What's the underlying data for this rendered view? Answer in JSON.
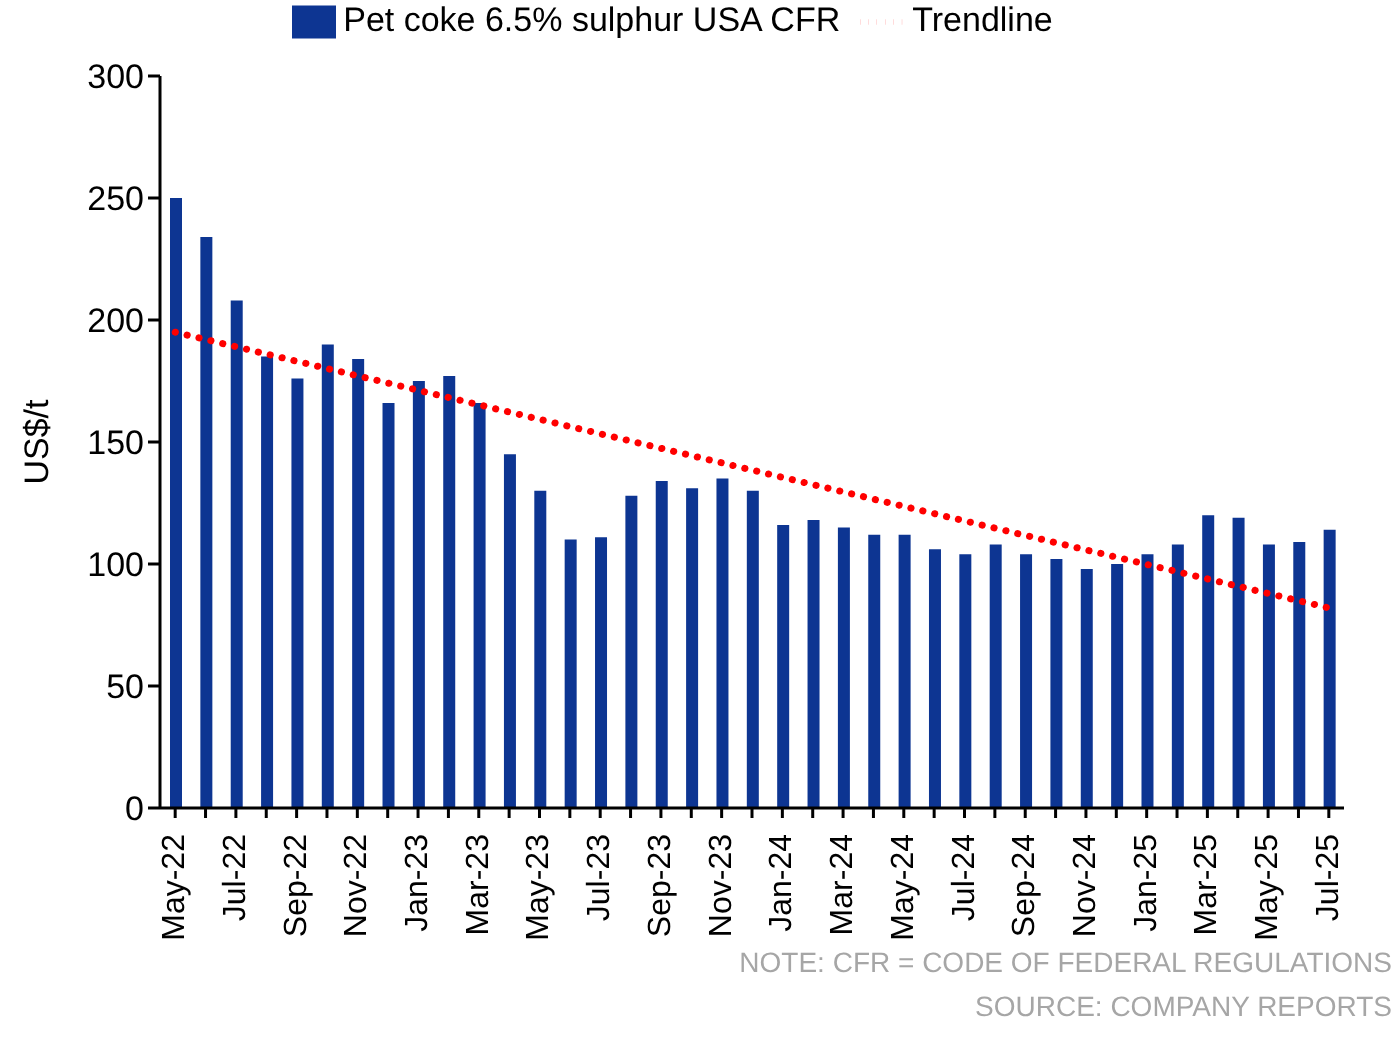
{
  "chart_data": {
    "type": "bar",
    "ylabel": "US$/t",
    "categories": [
      "May-22",
      null,
      "Jul-22",
      null,
      "Sep-22",
      null,
      "Nov-22",
      null,
      "Jan-23",
      null,
      "Mar-23",
      null,
      "May-23",
      null,
      "Jul-23",
      null,
      "Sep-23",
      null,
      "Nov-23",
      null,
      "Jan-24",
      null,
      "Mar-24",
      null,
      "May-24",
      null,
      "Jul-24",
      null,
      "Sep-24",
      null,
      "Nov-24",
      null,
      "Jan-25",
      null,
      "Mar-25",
      null,
      "May-25",
      null,
      "Jul-25"
    ],
    "series": [
      {
        "name": "Pet coke 6.5% sulphur USA CFR",
        "color": "#0d3592",
        "values": [
          250,
          234,
          208,
          185,
          176,
          190,
          184,
          166,
          175,
          177,
          166,
          145,
          130,
          110,
          111,
          128,
          134,
          131,
          135,
          130,
          116,
          118,
          115,
          112,
          112,
          106,
          104,
          108,
          104,
          102,
          98,
          100,
          104,
          108,
          120,
          119,
          108,
          109,
          114
        ]
      },
      {
        "name": "Trendline",
        "type": "line",
        "color": "#ff0000",
        "line_style": "dotted",
        "marker": "none",
        "x": [
          "May-22",
          "Jul-25"
        ],
        "values": [
          195,
          82
        ]
      }
    ],
    "ylim": [
      0,
      300
    ],
    "yticks": [
      0,
      50,
      100,
      150,
      200,
      250,
      300
    ],
    "grid": false,
    "legend": "top",
    "annotations": [
      "NOTE: CFR = CODE OF FEDERAL REGULATIONS",
      "SOURCE: COMPANY REPORTS"
    ]
  }
}
